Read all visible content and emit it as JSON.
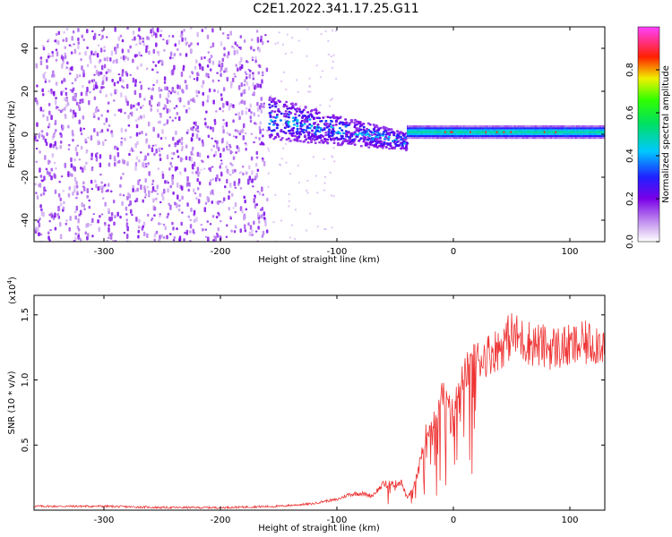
{
  "title": "C2E1.2022.341.17.25.G11",
  "chart_data": [
    {
      "type": "heatmap",
      "xlabel": "Height of straight line (km)",
      "ylabel": "Frequency (Hz)",
      "xlim": [
        -360,
        130
      ],
      "ylim": [
        -50,
        50
      ],
      "xticks": [
        -300,
        -200,
        -100,
        0,
        100
      ],
      "yticks": [
        -40,
        -20,
        0,
        20,
        40
      ],
      "colorbar": {
        "label": "Normalized spectral amplitude",
        "ticks": [
          "0.0",
          "0.2",
          "0.4",
          "0.6",
          "0.8"
        ],
        "tick_values": [
          0.0,
          0.2,
          0.4,
          0.6,
          0.8
        ],
        "range": [
          0,
          1
        ],
        "colormap": "rainbow (white-purple-blue-cyan-green-yellow-red-magenta)"
      },
      "regions": [
        {
          "x_from": -360,
          "x_to": -160,
          "description": "broadband noise",
          "freq_spread": 50,
          "amplitude": 0.05
        },
        {
          "x_from": -160,
          "x_to": -40,
          "description": "signal converging",
          "center_freq_start": 8,
          "center_freq_end": -3,
          "amplitude": 0.25
        },
        {
          "x_from": -40,
          "x_to": 130,
          "description": "narrow carrier",
          "center_freq": 1,
          "amplitude": 0.5
        }
      ]
    },
    {
      "type": "line",
      "xlabel": "Height of straight line (km)",
      "ylabel": "SNR (10 * v/v)",
      "scale_label": "(x10",
      "scale_exp": "4",
      "scale_close": ")",
      "xlim": [
        -360,
        130
      ],
      "ylim": [
        0,
        1.65
      ],
      "xticks": [
        -300,
        -200,
        -100,
        0,
        100
      ],
      "yticks": [
        "0.5",
        "1.0",
        "1.5"
      ],
      "ytick_values": [
        0.5,
        1.0,
        1.5
      ],
      "series": [
        {
          "color": "#ee3333",
          "x": [
            -360,
            -300,
            -250,
            -200,
            -150,
            -120,
            -110,
            -100,
            -90,
            -80,
            -70,
            -60,
            -50,
            -45,
            -40,
            -35,
            -30,
            -25,
            -20,
            -15,
            -10,
            -5,
            0,
            5,
            10,
            15,
            20,
            30,
            40,
            50,
            60,
            80,
            100,
            115,
            130
          ],
          "y": [
            0.03,
            0.03,
            0.02,
            0.02,
            0.03,
            0.05,
            0.07,
            0.08,
            0.12,
            0.13,
            0.11,
            0.2,
            0.2,
            0.22,
            0.1,
            0.15,
            0.3,
            0.55,
            0.65,
            0.75,
            0.9,
            0.8,
            0.75,
            0.95,
            1.05,
            1.1,
            1.15,
            1.2,
            1.25,
            1.35,
            1.3,
            1.25,
            1.25,
            1.28,
            1.3
          ]
        }
      ]
    }
  ]
}
